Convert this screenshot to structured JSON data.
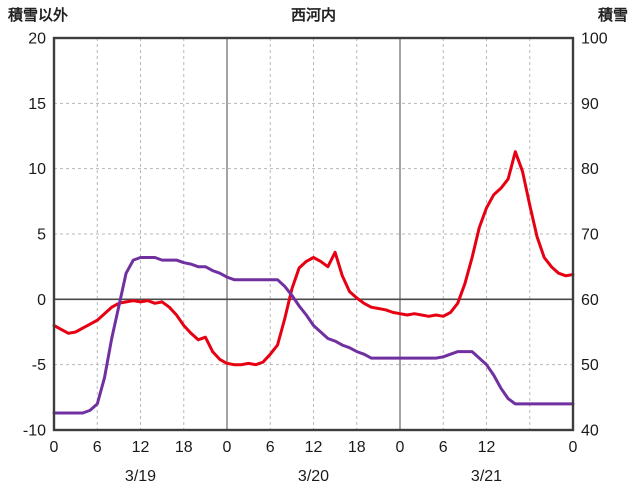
{
  "header": {
    "left_axis_title": "積雪以外",
    "chart_title": "西河内",
    "right_axis_title": "積雪"
  },
  "chart_data": {
    "type": "line",
    "title": "西河内",
    "left_axis": {
      "label": "積雪以外",
      "min": -10,
      "max": 20,
      "ticks": [
        20,
        15,
        10,
        5,
        0,
        -5,
        -10
      ]
    },
    "right_axis": {
      "label": "積雪",
      "min": 40,
      "max": 100,
      "ticks": [
        100,
        90,
        80,
        70,
        60,
        50,
        40
      ]
    },
    "x_axis": {
      "min_hour": 0,
      "max_hour": 72,
      "ticks": [
        {
          "hour": 0,
          "label": "0"
        },
        {
          "hour": 6,
          "label": "6"
        },
        {
          "hour": 12,
          "label": "12"
        },
        {
          "hour": 18,
          "label": "18"
        },
        {
          "hour": 24,
          "label": "0"
        },
        {
          "hour": 30,
          "label": "6"
        },
        {
          "hour": 36,
          "label": "12"
        },
        {
          "hour": 42,
          "label": "18"
        },
        {
          "hour": 48,
          "label": "0"
        },
        {
          "hour": 54,
          "label": "6"
        },
        {
          "hour": 60,
          "label": "12"
        },
        {
          "hour": 72,
          "label": "0"
        }
      ],
      "date_labels": [
        {
          "hour": 12,
          "label": "3/19"
        },
        {
          "hour": 36,
          "label": "3/20"
        },
        {
          "hour": 60,
          "label": "3/21"
        }
      ]
    },
    "grid": {
      "vertical_dashed_hours": [
        6,
        12,
        18,
        30,
        36,
        42,
        54,
        60,
        66
      ],
      "vertical_solid_hours": [
        24,
        48
      ],
      "horizontal_dashed_values": [
        15,
        10,
        5,
        -5
      ],
      "horizontal_solid_values": [
        0
      ]
    },
    "hours": [
      0,
      1,
      2,
      3,
      4,
      5,
      6,
      7,
      8,
      9,
      10,
      11,
      12,
      13,
      14,
      15,
      16,
      17,
      18,
      19,
      20,
      21,
      22,
      23,
      24,
      25,
      26,
      27,
      28,
      29,
      30,
      31,
      32,
      33,
      34,
      35,
      36,
      37,
      38,
      39,
      40,
      41,
      42,
      43,
      44,
      45,
      46,
      47,
      48,
      49,
      50,
      51,
      52,
      53,
      54,
      55,
      56,
      57,
      58,
      59,
      60,
      61,
      62,
      63,
      64,
      65,
      66,
      67,
      68,
      69,
      70,
      71,
      72
    ],
    "series": [
      {
        "name": "red-series",
        "axis": "left",
        "color": "#e60012",
        "values": [
          -2,
          -2.3,
          -2.6,
          -2.5,
          -2.2,
          -1.9,
          -1.6,
          -1.1,
          -0.6,
          -0.3,
          -0.2,
          -0.1,
          -0.2,
          -0.1,
          -0.3,
          -0.2,
          -0.6,
          -1.2,
          -2,
          -2.6,
          -3.1,
          -2.9,
          -4,
          -4.6,
          -4.9,
          -5,
          -5,
          -4.9,
          -5,
          -4.8,
          -4.2,
          -3.5,
          -1.5,
          0.8,
          2.4,
          2.9,
          3.2,
          2.9,
          2.5,
          3.6,
          1.8,
          0.6,
          0.1,
          -0.3,
          -0.6,
          -0.7,
          -0.8,
          -1,
          -1.1,
          -1.2,
          -1.1,
          -1.2,
          -1.3,
          -1.2,
          -1.3,
          -1,
          -0.3,
          1.2,
          3.2,
          5.5,
          7,
          8,
          8.5,
          9.2,
          11.3,
          9.8,
          7.2,
          4.8,
          3.2,
          2.5,
          2,
          1.8,
          1.9
        ]
      },
      {
        "name": "purple-series",
        "axis": "right",
        "color": "#7030a0",
        "values": [
          42.6,
          42.6,
          42.6,
          42.6,
          42.6,
          43,
          44,
          48,
          54,
          59,
          64,
          66,
          66.4,
          66.4,
          66.4,
          66,
          66,
          66,
          65.6,
          65.4,
          65,
          65,
          64.4,
          64,
          63.4,
          63,
          63,
          63,
          63,
          63,
          63,
          63,
          62,
          60.6,
          59,
          57.6,
          56,
          55,
          54,
          53.6,
          53,
          52.6,
          52,
          51.6,
          51,
          51,
          51,
          51,
          51,
          51,
          51,
          51,
          51,
          51,
          51.2,
          51.6,
          52,
          52,
          52,
          51,
          50,
          48.4,
          46.4,
          44.8,
          44,
          44,
          44,
          44,
          44,
          44,
          44,
          44,
          44
        ]
      }
    ]
  }
}
